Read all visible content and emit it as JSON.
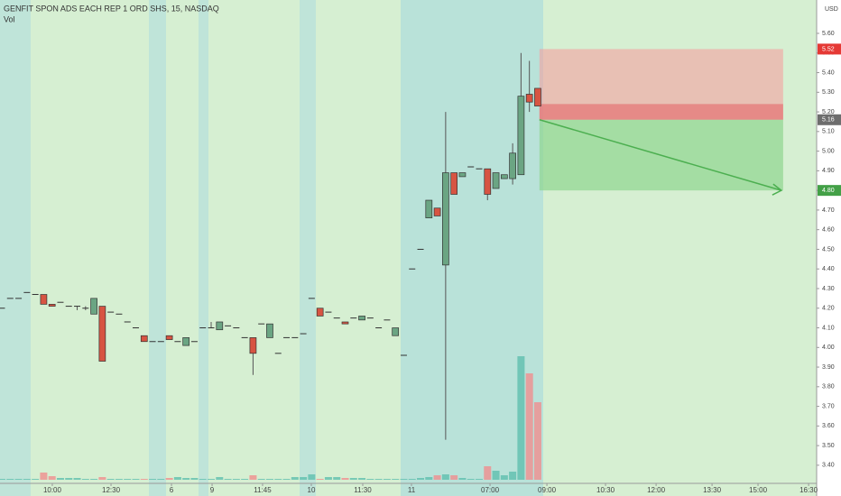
{
  "chart_data": {
    "type": "candlestick",
    "title": "GENFIT SPON ADS EACH REP 1 ORD SHS, 15, NASDAQ",
    "subtitle": "Vol",
    "y_axis_label": "USD",
    "x": [
      0,
      1,
      2,
      3,
      4,
      5,
      6,
      7,
      8,
      9,
      10,
      11,
      12,
      13,
      14,
      15,
      16,
      17,
      18,
      19,
      20,
      21,
      22,
      23,
      24,
      25,
      26,
      27,
      28,
      29,
      30,
      31,
      32,
      33,
      34,
      35,
      36,
      37,
      38,
      39,
      40,
      41,
      42,
      43,
      44,
      45,
      46,
      47,
      48,
      49,
      50,
      51,
      52,
      53,
      54,
      55,
      56,
      57,
      58,
      59,
      60,
      61,
      62,
      63,
      64
    ],
    "open": [
      4.2,
      4.25,
      4.25,
      4.28,
      4.27,
      4.27,
      4.22,
      4.23,
      4.21,
      4.21,
      4.2,
      4.17,
      4.21,
      4.18,
      4.17,
      4.13,
      4.1,
      4.06,
      4.03,
      4.03,
      4.06,
      4.03,
      4.01,
      4.03,
      4.1,
      4.1,
      4.09,
      4.11,
      4.1,
      4.05,
      4.05,
      4.12,
      4.05,
      3.97,
      4.05,
      4.05,
      4.07,
      4.25,
      4.2,
      4.18,
      4.15,
      4.13,
      4.15,
      4.14,
      4.15,
      4.1,
      4.14,
      4.06,
      3.96,
      4.4,
      4.5,
      4.66,
      4.71,
      4.42,
      4.89,
      4.87,
      4.92,
      4.91,
      4.91,
      4.81,
      4.86,
      4.86,
      4.88,
      5.29,
      5.32
    ],
    "high": [
      4.2,
      4.25,
      4.25,
      4.28,
      4.27,
      4.27,
      4.22,
      4.23,
      4.21,
      4.21,
      4.21,
      4.25,
      4.21,
      4.18,
      4.17,
      4.13,
      4.1,
      4.06,
      4.03,
      4.03,
      4.06,
      4.03,
      4.05,
      4.03,
      4.1,
      4.13,
      4.13,
      4.11,
      4.1,
      4.05,
      4.05,
      4.12,
      4.12,
      3.97,
      4.05,
      4.05,
      4.07,
      4.25,
      4.2,
      4.18,
      4.15,
      4.13,
      4.15,
      4.16,
      4.15,
      4.1,
      4.14,
      4.1,
      3.96,
      4.4,
      4.5,
      4.75,
      4.71,
      5.2,
      4.89,
      4.89,
      4.92,
      4.91,
      4.91,
      4.89,
      4.88,
      5.04,
      5.5,
      5.46,
      5.32
    ],
    "low": [
      4.2,
      4.25,
      4.25,
      4.28,
      4.27,
      4.22,
      4.21,
      4.23,
      4.21,
      4.19,
      4.19,
      4.17,
      3.93,
      4.18,
      4.17,
      4.13,
      4.1,
      4.03,
      4.03,
      4.03,
      4.04,
      4.03,
      4.01,
      4.03,
      4.1,
      4.1,
      4.09,
      4.11,
      4.1,
      4.05,
      3.86,
      4.12,
      4.05,
      3.97,
      4.05,
      4.05,
      4.07,
      4.25,
      4.16,
      4.18,
      4.15,
      4.12,
      4.15,
      4.14,
      4.15,
      4.1,
      4.14,
      4.06,
      3.96,
      4.4,
      4.5,
      4.66,
      4.67,
      3.53,
      4.78,
      4.87,
      4.92,
      4.91,
      4.75,
      4.81,
      4.86,
      4.83,
      4.88,
      5.2,
      5.23
    ],
    "close": [
      4.2,
      4.25,
      4.25,
      4.28,
      4.27,
      4.22,
      4.21,
      4.23,
      4.21,
      4.21,
      4.2,
      4.25,
      3.93,
      4.18,
      4.17,
      4.13,
      4.1,
      4.03,
      4.03,
      4.03,
      4.04,
      4.03,
      4.05,
      4.03,
      4.1,
      4.1,
      4.13,
      4.11,
      4.1,
      4.05,
      3.97,
      4.12,
      4.12,
      3.97,
      4.05,
      4.05,
      4.07,
      4.25,
      4.16,
      4.18,
      4.15,
      4.12,
      4.15,
      4.16,
      4.15,
      4.1,
      4.14,
      4.1,
      3.96,
      4.4,
      4.5,
      4.75,
      4.67,
      4.89,
      4.78,
      4.89,
      4.92,
      4.91,
      4.78,
      4.89,
      4.88,
      4.99,
      5.28,
      5.25,
      5.23
    ],
    "volume": [
      1,
      1,
      1,
      1,
      1,
      8,
      4,
      2,
      2,
      2,
      1,
      1,
      3,
      1,
      1,
      1,
      1,
      1,
      1,
      1,
      2,
      3,
      2,
      2,
      1,
      1,
      3,
      1,
      1,
      1,
      5,
      1,
      1,
      1,
      1,
      3,
      3,
      6,
      1,
      3,
      3,
      2,
      2,
      2,
      1,
      1,
      1,
      1,
      1,
      1,
      2,
      3,
      5,
      6,
      5,
      2,
      1,
      1,
      15,
      10,
      5,
      9,
      137,
      118,
      86
    ],
    "volume_lim": [
      0,
      160
    ],
    "up_color": "#6ba583",
    "down_color": "#d75442",
    "xlim": [
      0,
      97.3
    ],
    "xticks": [
      {
        "value": 6.03,
        "label": "10:00"
      },
      {
        "value": 13.04,
        "label": "12:30"
      },
      {
        "value": 20.26,
        "label": "6"
      },
      {
        "value": 25.11,
        "label": "9"
      },
      {
        "value": 31.14,
        "label": "11:45"
      },
      {
        "value": 36.96,
        "label": "10"
      },
      {
        "value": 43.1,
        "label": "11:30"
      },
      {
        "value": 48.92,
        "label": "11"
      },
      {
        "value": 58.3,
        "label": "07:00"
      },
      {
        "value": 65.09,
        "label": "09:00"
      },
      {
        "value": 72.09,
        "label": "10:30"
      },
      {
        "value": 78.13,
        "label": "12:00"
      },
      {
        "value": 84.81,
        "label": "13:30"
      },
      {
        "value": 90.3,
        "label": "15:00"
      },
      {
        "value": 96.34,
        "label": "16:30"
      }
    ],
    "ylim": [
      3.326,
      5.77
    ],
    "yticks": [
      {
        "value": 3.4,
        "label": "3.40"
      },
      {
        "value": 3.5,
        "label": "3.50"
      },
      {
        "value": 3.6,
        "label": "3.60"
      },
      {
        "value": 3.7,
        "label": "3.70"
      },
      {
        "value": 3.8,
        "label": "3.80"
      },
      {
        "value": 3.9,
        "label": "3.90"
      },
      {
        "value": 4.0,
        "label": "4.00"
      },
      {
        "value": 4.1,
        "label": "4.10"
      },
      {
        "value": 4.2,
        "label": "4.20"
      },
      {
        "value": 4.3,
        "label": "4.30"
      },
      {
        "value": 4.4,
        "label": "4.40"
      },
      {
        "value": 4.5,
        "label": "4.50"
      },
      {
        "value": 4.6,
        "label": "4.60"
      },
      {
        "value": 4.7,
        "label": "4.70"
      },
      {
        "value": 4.8,
        "label": "4.80"
      },
      {
        "value": 4.9,
        "label": "4.90"
      },
      {
        "value": 5.0,
        "label": "5.00"
      },
      {
        "value": 5.1,
        "label": "5.10"
      },
      {
        "value": 5.2,
        "label": "5.20"
      },
      {
        "value": 5.3,
        "label": "5.30"
      },
      {
        "value": 5.4,
        "label": "5.40"
      },
      {
        "value": 5.5,
        "label": "5.50"
      },
      {
        "value": 5.6,
        "label": "5.60"
      }
    ],
    "grid": false,
    "position": {
      "x_start": 64.2,
      "x_end": 93.3,
      "entry": 5.16,
      "stop": 5.52,
      "target": 4.8,
      "current": 5.24
    },
    "price_labels": [
      {
        "value": 5.52,
        "label": "5.52",
        "color": "#e53935"
      },
      {
        "value": 5.16,
        "label": "5.16",
        "color": "#6d6d6d"
      },
      {
        "value": 4.8,
        "label": "4.80",
        "color": "#43a047"
      }
    ]
  }
}
